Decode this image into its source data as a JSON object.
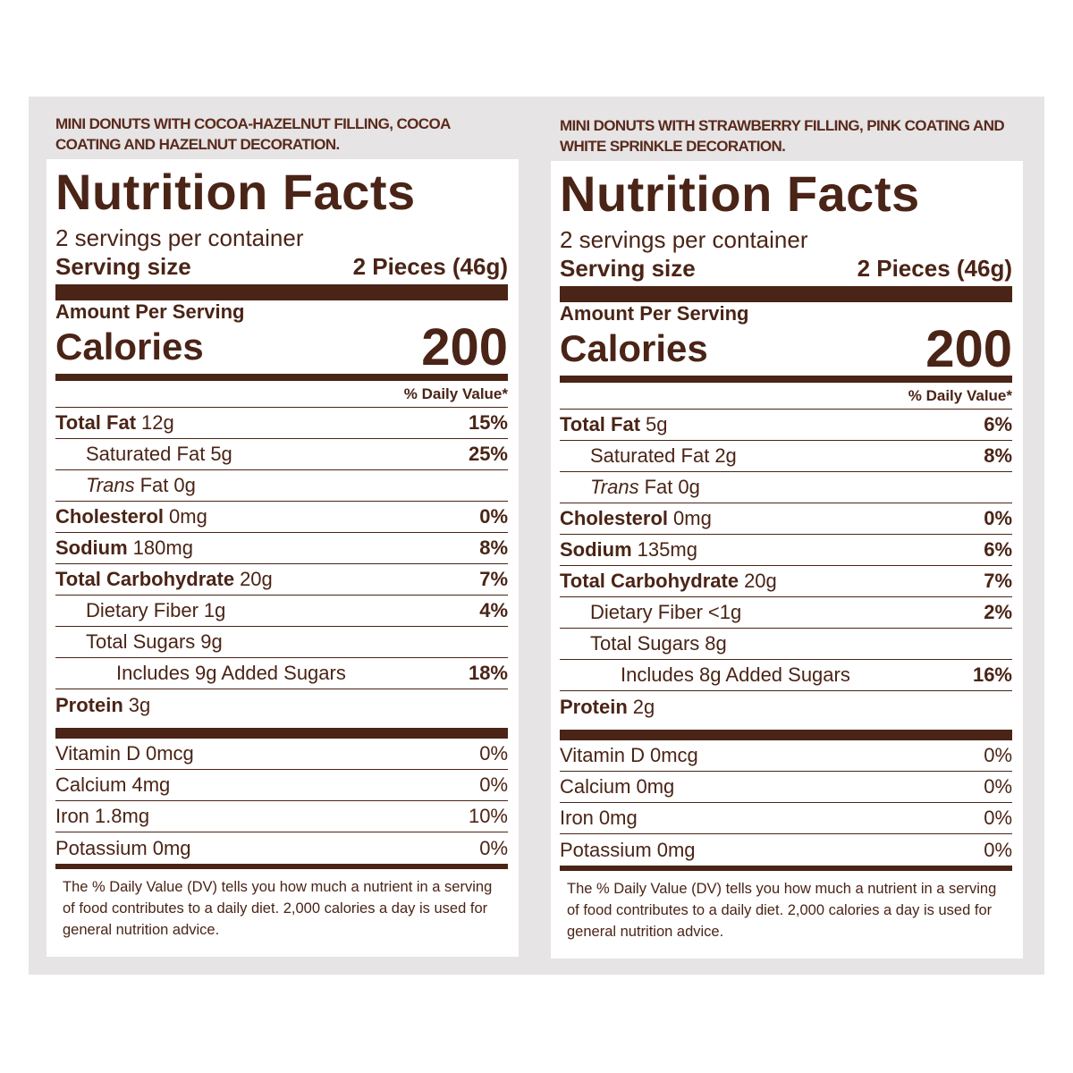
{
  "panels": [
    {
      "description": "MINI DONUTS WITH COCOA-HAZELNUT FILLING, COCOA COATING AND HAZELNUT DECORATION.",
      "title": "Nutrition Facts",
      "servings": "2 servings per container",
      "serving_size_label": "Serving size",
      "serving_size": "2 Pieces (46g)",
      "amount_per_serving": "Amount Per Serving",
      "calories_label": "Calories",
      "calories": "200",
      "daily_value_header": "% Daily Value*",
      "nutrients": [
        {
          "label": "Total Fat",
          "amount": "12g",
          "dv": "15%",
          "indent": 0
        },
        {
          "label": "Saturated Fat",
          "amount": "5g",
          "dv": "25%",
          "indent": 1
        },
        {
          "italic": "Trans",
          "label": "Fat",
          "amount": "0g",
          "indent": 1
        },
        {
          "label": "Cholesterol",
          "amount": "0mg",
          "dv": "0%",
          "indent": 0
        },
        {
          "label": "Sodium",
          "amount": "180mg",
          "dv": "8%",
          "indent": 0
        },
        {
          "label": "Total Carbohydrate",
          "amount": "20g",
          "dv": "7%",
          "indent": 0
        },
        {
          "label": "Dietary Fiber",
          "amount": "1g",
          "dv": "4%",
          "indent": 1
        },
        {
          "label": "Total Sugars",
          "amount": "9g",
          "indent": 1
        },
        {
          "label": "Includes 9g Added Sugars",
          "dv": "18%",
          "indent": 2
        },
        {
          "label": "Protein",
          "amount": "3g",
          "indent": 0
        }
      ],
      "vitamins": [
        {
          "label": "Vitamin D",
          "amount": "0mcg",
          "dv": "0%"
        },
        {
          "label": "Calcium",
          "amount": "4mg",
          "dv": "0%"
        },
        {
          "label": "Iron",
          "amount": "1.8mg",
          "dv": "10%"
        },
        {
          "label": "Potassium",
          "amount": "0mg",
          "dv": "0%"
        }
      ],
      "footnote": "The % Daily Value (DV) tells you how much a nutrient in a serving of food contributes to a daily diet. 2,000 calories a day is used for general nutrition advice."
    },
    {
      "description": "MINI DONUTS WITH STRAWBERRY FILLING, PINK COATING AND WHITE SPRINKLE DECORATION.",
      "title": "Nutrition Facts",
      "servings": "2 servings per container",
      "serving_size_label": "Serving size",
      "serving_size": "2 Pieces (46g)",
      "amount_per_serving": "Amount Per Serving",
      "calories_label": "Calories",
      "calories": "200",
      "daily_value_header": "% Daily Value*",
      "nutrients": [
        {
          "label": "Total Fat",
          "amount": "5g",
          "dv": "6%",
          "indent": 0
        },
        {
          "label": "Saturated Fat",
          "amount": "2g",
          "dv": "8%",
          "indent": 1
        },
        {
          "italic": "Trans",
          "label": "Fat",
          "amount": "0g",
          "indent": 1
        },
        {
          "label": "Cholesterol",
          "amount": "0mg",
          "dv": "0%",
          "indent": 0
        },
        {
          "label": "Sodium",
          "amount": "135mg",
          "dv": "6%",
          "indent": 0
        },
        {
          "label": "Total Carbohydrate",
          "amount": "20g",
          "dv": "7%",
          "indent": 0
        },
        {
          "label": "Dietary Fiber",
          "amount": "<1g",
          "dv": "2%",
          "indent": 1
        },
        {
          "label": "Total Sugars",
          "amount": "8g",
          "indent": 1
        },
        {
          "label": "Includes 8g Added Sugars",
          "dv": "16%",
          "indent": 2
        },
        {
          "label": "Protein",
          "amount": "2g",
          "indent": 0
        }
      ],
      "vitamins": [
        {
          "label": "Vitamin D",
          "amount": "0mcg",
          "dv": "0%"
        },
        {
          "label": "Calcium",
          "amount": "0mg",
          "dv": "0%"
        },
        {
          "label": "Iron",
          "amount": "0mg",
          "dv": "0%"
        },
        {
          "label": "Potassium",
          "amount": "0mg",
          "dv": "0%"
        }
      ],
      "footnote": "The % Daily Value (DV) tells you how much a nutrient in a serving of food contributes to a daily diet. 2,000 calories a day is used for general nutrition advice."
    }
  ]
}
